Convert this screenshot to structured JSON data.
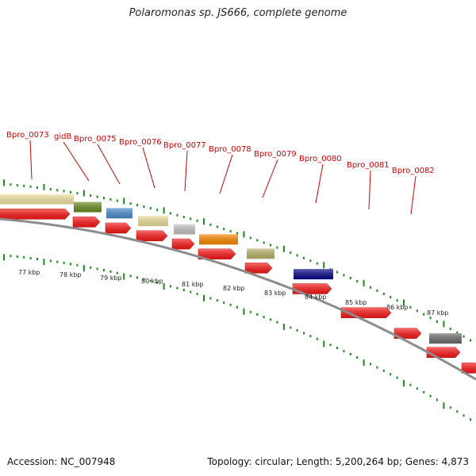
{
  "title": "Polaromonas sp. JS666, complete genome",
  "footer": {
    "accession": "Accession: NC_007948",
    "stats": "Topology: circular; Length: 5,200,264 bp; Genes: 4,873"
  },
  "colors": {
    "label_text": "#cc0000",
    "tick": "#1a8a1a",
    "cds_arrow": "#ff1a1a",
    "backbone": "#8c8c8c"
  },
  "gene_labels": [
    "Bpro_0073",
    "gidB",
    "Bpro_0075",
    "Bpro_0076",
    "Bpro_0077",
    "Bpro_0078",
    "Bpro_0079",
    "Bpro_0080",
    "Bpro_0081",
    "Bpro_0082"
  ],
  "kbp_labels": [
    "77 kbp",
    "78 kbp",
    "79 kbp",
    "80 kbp",
    "81 kbp",
    "82 kbp",
    "83 kbp",
    "84 kbp",
    "85 kbp",
    "86 kbp",
    "87 kbp"
  ],
  "cog_colors": [
    "#f5e9a6",
    "#6b8e23",
    "#4f8fcf",
    "#f0e4a0",
    "#c8c8c8",
    "#ff8c00",
    "#bdb76b",
    "#0a0a8a",
    "#707070"
  ]
}
